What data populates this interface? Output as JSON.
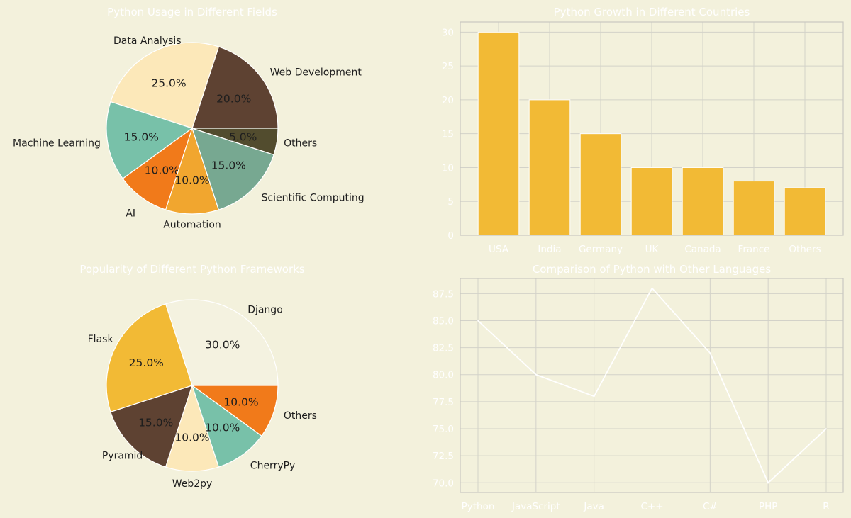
{
  "chart_data": [
    {
      "type": "pie",
      "title": "Python Usage in Different Fields",
      "labels": [
        "Web Development",
        "Data Analysis",
        "Machine Learning",
        "AI",
        "Automation",
        "Scientific Computing",
        "Others"
      ],
      "values": [
        20,
        25,
        15,
        10,
        10,
        15,
        5
      ],
      "value_labels": [
        "20.0%",
        "25.0%",
        "15.0%",
        "10.0%",
        "10.0%",
        "15.0%",
        "5.0%"
      ],
      "colors": [
        "#5e4232",
        "#fce8b9",
        "#78c1a9",
        "#f17a1a",
        "#f1a62f",
        "#77a891",
        "#524c2e"
      ]
    },
    {
      "type": "bar",
      "title": "Python Growth in Different Countries",
      "categories": [
        "USA",
        "India",
        "Germany",
        "UK",
        "Canada",
        "France",
        "Others"
      ],
      "values": [
        30,
        20,
        15,
        10,
        10,
        8,
        7
      ],
      "ylim": [
        0,
        31.5
      ],
      "yticks": [
        0,
        5,
        10,
        15,
        20,
        25,
        30
      ],
      "color": "#f2ba35"
    },
    {
      "type": "pie",
      "title": "Popularity of Different Python Frameworks",
      "labels": [
        "Django",
        "Flask",
        "Pyramid",
        "Web2py",
        "CherryPy",
        "Others"
      ],
      "values": [
        30,
        25,
        15,
        10,
        10,
        10
      ],
      "value_labels": [
        "30.0%",
        "25.0%",
        "15.0%",
        "10.0%",
        "10.0%",
        "10.0%"
      ],
      "colors": [
        "#f4f2e0",
        "#f2ba35",
        "#5e4232",
        "#fce8b9",
        "#78c1a9",
        "#f17a1a"
      ]
    },
    {
      "type": "line",
      "title": "Comparison of Python with Other Languages",
      "categories": [
        "Python",
        "JavaScript",
        "Java",
        "C++",
        "C#",
        "PHP",
        "R"
      ],
      "values": [
        85,
        80,
        78,
        88,
        82,
        70,
        75
      ],
      "ylim": [
        69.1,
        88.9
      ],
      "yticks": [
        "70.0",
        "72.5",
        "75.0",
        "77.5",
        "80.0",
        "82.5",
        "85.0",
        "87.5"
      ],
      "color": "#ffffff"
    }
  ]
}
